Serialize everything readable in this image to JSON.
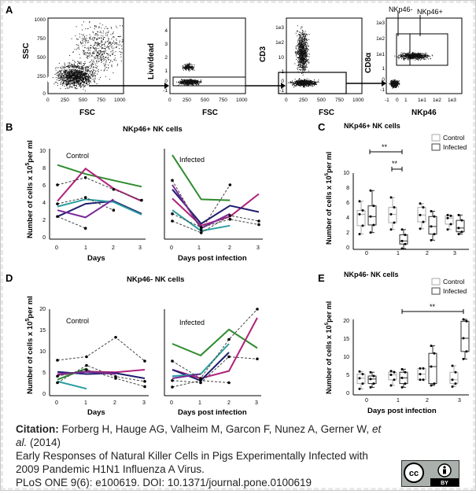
{
  "figure": {
    "panels": {
      "A": "A",
      "B": "B",
      "C": "C",
      "D": "D",
      "E": "E"
    },
    "flow": {
      "plot1": {
        "ylabel": "SSC",
        "xlabel": "FSC",
        "xticks": [
          "0",
          "250",
          "500",
          "750",
          "1000"
        ],
        "yticks": [
          "1000",
          "750",
          "500",
          "250",
          "0"
        ]
      },
      "plot2": {
        "ylabel": "Live/dead",
        "xlabel": "FSC",
        "xticks": [
          "0",
          "250",
          "500",
          "750",
          "1000"
        ],
        "yticks": [
          "4",
          "3",
          "2",
          "1",
          "0",
          "-1"
        ]
      },
      "plot3": {
        "ylabel": "CD3",
        "xlabel": "FSC",
        "xticks": [
          "0",
          "250",
          "500",
          "750",
          "1000"
        ],
        "yticks": [
          "1e3",
          "1e2",
          "10",
          "1",
          "0",
          "-1"
        ]
      },
      "plot4": {
        "ylabel": "CD8α",
        "xlabel": "NKp46",
        "xticks": [
          "-1",
          "0",
          "1",
          "1e1",
          "1e2",
          "1e3"
        ],
        "yticks": [
          "1e3",
          "1e2",
          "1e1",
          "1",
          "0",
          "-1"
        ],
        "gate_neg": "NKp46-",
        "gate_pos": "NKp46+"
      }
    },
    "B": {
      "title": "NKp46+ NK cells",
      "left_label": "Control",
      "right_label": "Infected",
      "ylabel": "Number of cells x 10",
      "ylabel_sup": "5",
      "ylabel_tail": "per ml",
      "left_xlabel": "Days",
      "right_xlabel": "Days post infection",
      "yticks": [
        "10",
        "8",
        "6",
        "4",
        "2",
        "0"
      ],
      "xticks": [
        "0",
        "1",
        "2",
        "3"
      ]
    },
    "C": {
      "title": "NKp46+ NK cells",
      "legend": [
        "Control",
        "Infected"
      ],
      "sig1": "**",
      "sig2": "**",
      "ylabel": "Number of cells x 10",
      "ylabel_sup": "5",
      "ylabel_tail": "per ml",
      "yticks": [
        "10",
        "8",
        "6",
        "4",
        "2",
        "0"
      ],
      "xticks": [
        "0",
        "1",
        "2",
        "3"
      ]
    },
    "D": {
      "title": "NKp46- NK cells",
      "left_label": "Control",
      "right_label": "Infected",
      "ylabel": "Number of cells x 10",
      "ylabel_sup": "5",
      "ylabel_tail": "per ml",
      "left_xlabel": "Days",
      "right_xlabel": "Days post infection",
      "yticks": [
        "20",
        "15",
        "10",
        "5",
        "0"
      ],
      "xticks": [
        "0",
        "1",
        "2",
        "3"
      ]
    },
    "E": {
      "title": "NKp46- NK cells",
      "legend": [
        "Control",
        "Infected"
      ],
      "sig": "**",
      "ylabel": "Number of cells x 10",
      "ylabel_sup": "5",
      "ylabel_tail": "per ml",
      "xlabel": "Days post infection",
      "yticks": [
        "20",
        "15",
        "10",
        "5",
        "0"
      ],
      "xticks": [
        "0",
        "1",
        "2",
        "3"
      ]
    }
  },
  "chart_data": [
    {
      "type": "line",
      "panel": "B-Control",
      "x": [
        0,
        1,
        2,
        3
      ],
      "ylim": [
        0,
        10
      ],
      "series": [
        {
          "color": "#2e8b2e",
          "values": [
            8.2,
            7.2,
            6.5,
            5.8
          ]
        },
        {
          "color": "#b0207a",
          "values": [
            4.2,
            7.8,
            5.6,
            4.2
          ]
        },
        {
          "color": "#1e1e6e",
          "values": [
            2.5,
            3.9,
            4.2,
            2.8
          ]
        },
        {
          "color": "#2a9ea0",
          "values": [
            3.6,
            4.4,
            4.1,
            2.7
          ]
        },
        {
          "color": "#444444",
          "dashed": true,
          "values": [
            6.0,
            6.8,
            5.5,
            4.3
          ]
        },
        {
          "color": "#444444",
          "dashed": true,
          "values": [
            2.5,
            1.2,
            null,
            null
          ]
        },
        {
          "color": "#444444",
          "dashed": true,
          "values": [
            3.9,
            4.6,
            3.2,
            null
          ]
        },
        {
          "color": "#7a2a9a",
          "values": [
            3.2,
            2.4,
            4.4,
            null
          ]
        }
      ]
    },
    {
      "type": "line",
      "panel": "B-Infected",
      "x": [
        0,
        1,
        2,
        3
      ],
      "ylim": [
        0,
        10
      ],
      "series": [
        {
          "color": "#2e8b2e",
          "values": [
            9.3,
            4.4,
            4.3,
            null
          ]
        },
        {
          "color": "#b0207a",
          "values": [
            4.5,
            1.5,
            2.5,
            5.0
          ]
        },
        {
          "color": "#1e1e6e",
          "values": [
            5.5,
            1.7,
            3.7,
            3.0
          ]
        },
        {
          "color": "#2a9ea0",
          "values": [
            3.2,
            0.9,
            1.5,
            null
          ]
        },
        {
          "color": "#7a2a9a",
          "values": [
            6.0,
            1.2,
            2.8,
            null
          ]
        },
        {
          "color": "#444444",
          "dashed": true,
          "values": [
            6.5,
            1.0,
            6.0,
            null
          ]
        },
        {
          "color": "#444444",
          "dashed": true,
          "values": [
            2.8,
            1.3,
            2.2,
            1.6
          ]
        },
        {
          "color": "#444444",
          "dashed": true,
          "values": [
            2.0,
            0.7,
            2.6,
            2.0
          ]
        }
      ]
    },
    {
      "type": "box",
      "panel": "C",
      "categories": [
        "0",
        "1",
        "2",
        "3"
      ],
      "ylim": [
        0,
        10
      ],
      "groups": [
        {
          "name": "Control",
          "boxes": [
            {
              "q1": 3.1,
              "med": 4.6,
              "q3": 5.1,
              "lo": 2.0,
              "hi": 6.3
            },
            {
              "q1": 3.5,
              "med": 4.6,
              "q3": 5.5,
              "lo": 2.6,
              "hi": 6.8
            },
            {
              "q1": 3.6,
              "med": 4.5,
              "q3": 5.5,
              "lo": 2.7,
              "hi": 6.0
            },
            {
              "q1": 3.3,
              "med": 4.1,
              "q3": 4.4,
              "lo": 2.6,
              "hi": 4.5
            }
          ]
        },
        {
          "name": "Infected",
          "boxes": [
            {
              "q1": 3.2,
              "med": 4.3,
              "q3": 5.7,
              "lo": 2.2,
              "hi": 7.7
            },
            {
              "q1": 0.7,
              "med": 1.1,
              "q3": 1.9,
              "lo": 0.1,
              "hi": 2.6
            },
            {
              "q1": 2.0,
              "med": 3.0,
              "q3": 4.3,
              "lo": 1.2,
              "hi": 5.0
            },
            {
              "q1": 2.3,
              "med": 2.8,
              "q3": 3.8,
              "lo": 2.0,
              "hi": 4.5
            }
          ]
        }
      ]
    },
    {
      "type": "line",
      "panel": "D-Control",
      "x": [
        0,
        1,
        2,
        3
      ],
      "ylim": [
        0,
        20
      ],
      "series": [
        {
          "color": "#b0207a",
          "values": [
            4.8,
            5.6,
            5.4,
            6.0
          ]
        },
        {
          "color": "#1e1e6e",
          "values": [
            5.5,
            5.0,
            5.2,
            4.0
          ]
        },
        {
          "color": "#2a9ea0",
          "values": [
            3.3,
            1.6,
            null,
            null
          ]
        },
        {
          "color": "#2e8b2e",
          "values": [
            3.7,
            6.3,
            null,
            null
          ]
        },
        {
          "color": "#7a2a9a",
          "values": [
            5.0,
            5.5,
            5.0,
            null
          ]
        },
        {
          "color": "#444444",
          "dashed": true,
          "values": [
            8.2,
            9.0,
            13.5,
            8.0
          ]
        },
        {
          "color": "#444444",
          "dashed": true,
          "values": [
            3.0,
            7.0,
            4.4,
            3.3
          ]
        },
        {
          "color": "#444444",
          "dashed": true,
          "values": [
            4.5,
            6.0,
            4.0,
            2.1
          ]
        }
      ]
    },
    {
      "type": "line",
      "panel": "D-Infected",
      "x": [
        0,
        1,
        2,
        3
      ],
      "ylim": [
        0,
        20
      ],
      "series": [
        {
          "color": "#2e8b2e",
          "values": [
            12.0,
            9.3,
            15.3,
            11.0
          ]
        },
        {
          "color": "#b0207a",
          "values": [
            6.0,
            4.0,
            5.7,
            18.0
          ]
        },
        {
          "color": "#1e1e6e",
          "values": [
            6.0,
            3.5,
            10.0,
            null
          ]
        },
        {
          "color": "#2a9ea0",
          "values": [
            4.5,
            5.0,
            12.0,
            null
          ]
        },
        {
          "color": "#7a2a9a",
          "values": [
            4.0,
            5.0,
            null,
            null
          ]
        },
        {
          "color": "#444444",
          "dashed": true,
          "values": [
            8.0,
            4.0,
            13.0,
            20.0
          ]
        },
        {
          "color": "#444444",
          "dashed": true,
          "values": [
            3.5,
            3.0,
            9.0,
            8.5
          ]
        },
        {
          "color": "#444444",
          "dashed": true,
          "values": [
            2.0,
            3.5,
            3.0,
            null
          ]
        }
      ]
    },
    {
      "type": "box",
      "panel": "E",
      "categories": [
        "0",
        "1",
        "2",
        "3"
      ],
      "ylim": [
        0,
        20
      ],
      "groups": [
        {
          "name": "Control",
          "boxes": [
            {
              "q1": 3.0,
              "med": 4.4,
              "q3": 5.5,
              "lo": 1.6,
              "hi": 6.2
            },
            {
              "q1": 4.0,
              "med": 5.3,
              "q3": 6.0,
              "lo": 2.5,
              "hi": 6.3
            },
            {
              "q1": 4.0,
              "med": 5.5,
              "q3": 7.0,
              "lo": 4.0,
              "hi": 7.0
            },
            {
              "q1": 3.0,
              "med": 4.0,
              "q3": 6.0,
              "lo": 2.2,
              "hi": 7.7
            }
          ]
        },
        {
          "name": "Infected",
          "boxes": [
            {
              "q1": 3.0,
              "med": 4.2,
              "q3": 5.0,
              "lo": 2.0,
              "hi": 6.0
            },
            {
              "q1": 3.0,
              "med": 4.5,
              "q3": 6.0,
              "lo": 2.0,
              "hi": 6.8
            },
            {
              "q1": 3.0,
              "med": 7.5,
              "q3": 11.0,
              "lo": 2.5,
              "hi": 13.0
            },
            {
              "q1": 11.5,
              "med": 15.0,
              "q3": 19.5,
              "lo": 9.5,
              "hi": 20.0
            }
          ]
        }
      ]
    }
  ],
  "citation": {
    "label": "Citation:",
    "authors": "Forberg H, Hauge AG, Valheim M, Garcon F, Nunez A, Gerner W,",
    "etal": "et al.",
    "year": "(2014)",
    "title": "Early Responses of Natural Killer Cells in Pigs Experimentally Infected with 2009 Pandemic H1N1 Influenza A Virus.",
    "journal": "PLoS ONE 9(6): e100619. DOI: 10.1371/journal.pone.0100619"
  },
  "license": {
    "cc": "cc",
    "by": "BY",
    "icon": "cc-by-icon"
  }
}
